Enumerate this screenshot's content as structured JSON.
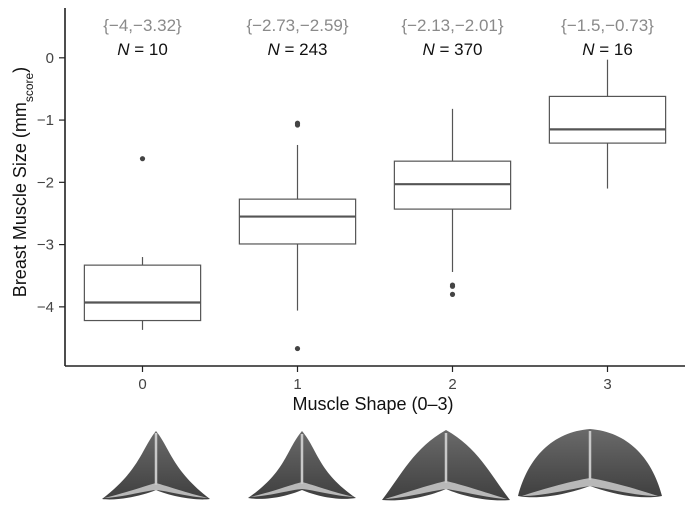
{
  "colors": {
    "box_stroke": "#555555",
    "range_text": "#8a8a8a",
    "sternum_dark": "#4d4d4d",
    "sternum_light": "#b8b8b8"
  },
  "chart_data": {
    "type": "box",
    "xlabel": "Muscle Shape (0–3)",
    "ylabel_main": "Breast Muscle Size (mm",
    "ylabel_sub": "score",
    "ylabel_close": ")",
    "ylim": [
      -4.95,
      0.8
    ],
    "yticks": [
      0,
      -1,
      -2,
      -3,
      -4
    ],
    "ytick_labels": [
      "0",
      "−1",
      "−2",
      "−3",
      "−4"
    ],
    "grid": false,
    "legend": "none",
    "n_prefix": "N",
    "n_sep": " = ",
    "groups": [
      {
        "category": "0",
        "range_label": "{−4,−3.32}",
        "n": "10",
        "q1": -4.22,
        "median": -3.93,
        "q3": -3.33,
        "whisker_low": -4.37,
        "whisker_high": -3.2,
        "outliers": [
          -1.62
        ]
      },
      {
        "category": "1",
        "range_label": "{−2.73,−2.59}",
        "n": "243",
        "q1": -2.99,
        "median": -2.55,
        "q3": -2.27,
        "whisker_low": -4.06,
        "whisker_high": -1.4,
        "outliers": [
          -1.05,
          -1.08,
          -4.67
        ]
      },
      {
        "category": "2",
        "range_label": "{−2.13,−2.01}",
        "n": "370",
        "q1": -2.43,
        "median": -2.03,
        "q3": -1.66,
        "whisker_low": -3.44,
        "whisker_high": -0.82,
        "outliers": [
          -3.65,
          -3.67,
          -3.8
        ]
      },
      {
        "category": "3",
        "range_label": "{−1.5,−0.73}",
        "n": "16",
        "q1": -1.37,
        "median": -1.15,
        "q3": -0.62,
        "whisker_low": -2.1,
        "whisker_high": -0.03,
        "outliers": []
      }
    ]
  }
}
